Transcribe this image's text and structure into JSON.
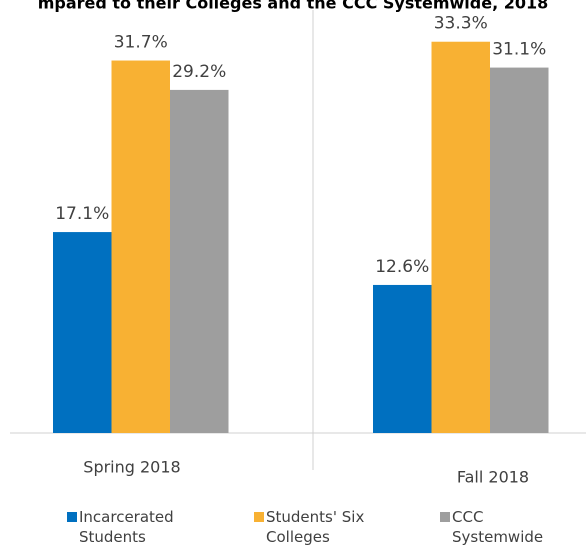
{
  "chart_data": {
    "type": "bar",
    "title": "mpared to their Colleges and the CCC Systemwide, 2018",
    "categories": [
      "Spring 2018",
      "Fall 2018"
    ],
    "series": [
      {
        "name": "Incarcerated Students",
        "color": "#0070c0",
        "values": [
          17.1,
          12.6
        ],
        "value_labels": [
          "17.1%",
          "12.6%"
        ]
      },
      {
        "name": "Students' Six Colleges",
        "color": "#f8b133",
        "values": [
          31.7,
          33.3
        ],
        "value_labels": [
          "31.7%",
          "33.3%"
        ]
      },
      {
        "name": "CCC Systemwide",
        "color": "#9e9e9e",
        "values": [
          29.2,
          31.1
        ],
        "value_labels": [
          "29.2%",
          "31.1%"
        ]
      }
    ],
    "legend": "bottom"
  }
}
